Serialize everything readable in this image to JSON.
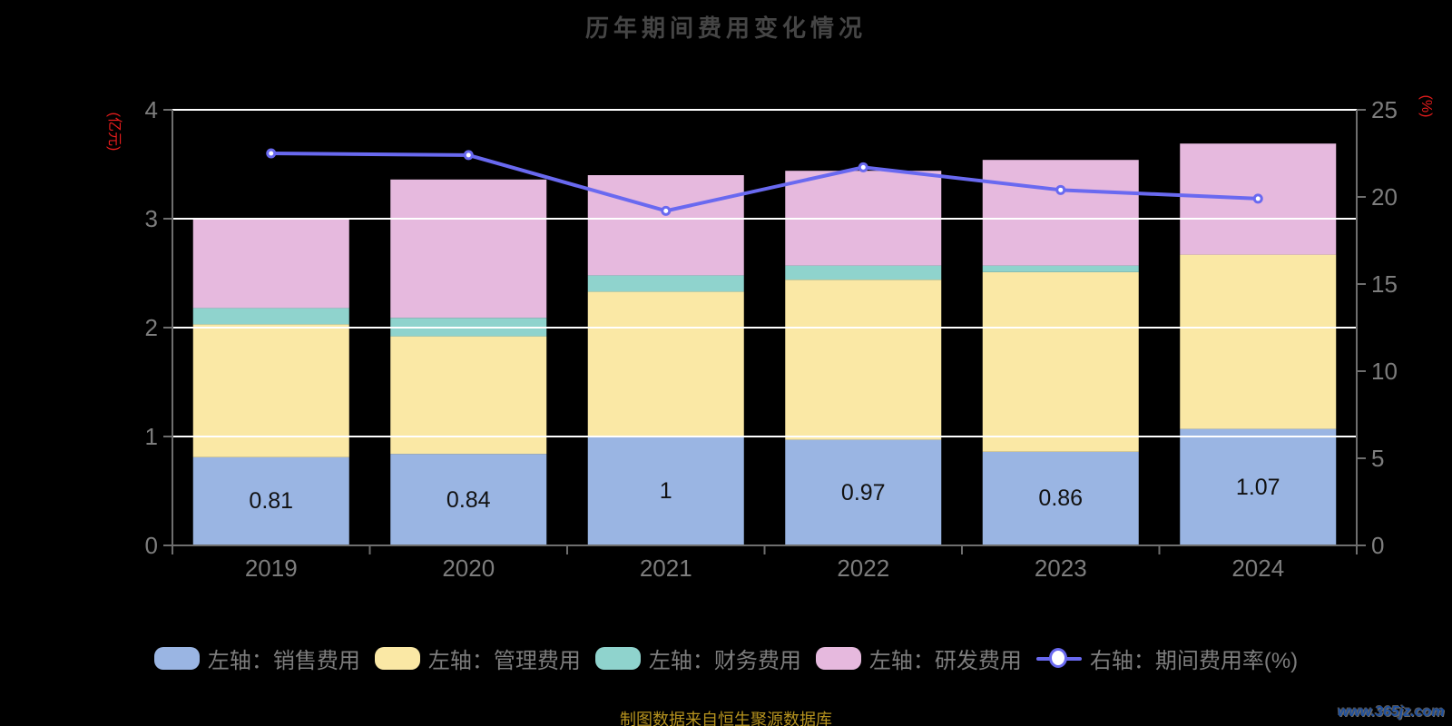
{
  "title": "历年期间费用变化情况",
  "footer": "制图数据来自恒生聚源数据库",
  "watermark": "www.365jz.com",
  "left_axis": {
    "name": "(亿元)",
    "tick_labels": [
      "0",
      "1",
      "2",
      "3",
      "4"
    ],
    "min": 0,
    "max": 4
  },
  "right_axis": {
    "name": "(%)",
    "tick_labels": [
      "0",
      "5",
      "10",
      "15",
      "20",
      "25"
    ],
    "min": 0,
    "max": 25
  },
  "legend": {
    "position": "bottom",
    "items": [
      {
        "key": "sales",
        "label": "左轴：销售费用",
        "type": "swatch",
        "color": "#9ab5e3"
      },
      {
        "key": "admin",
        "label": "左轴：管理费用",
        "type": "swatch",
        "color": "#fae8a5"
      },
      {
        "key": "finance",
        "label": "左轴：财务费用",
        "type": "swatch",
        "color": "#8fd3cd"
      },
      {
        "key": "rnd",
        "label": "左轴：研发费用",
        "type": "swatch",
        "color": "#e6b9de"
      },
      {
        "key": "ratio",
        "label": "右轴：期间费用率(%)",
        "type": "line",
        "color": "#6969f0"
      }
    ]
  },
  "chart_data": {
    "type": "bar",
    "subtype": "stacked bars with overlay line (dual axis)",
    "title": "历年期间费用变化情况",
    "categories": [
      "2019",
      "2020",
      "2021",
      "2022",
      "2023",
      "2024"
    ],
    "series": [
      {
        "key": "sales",
        "name": "销售费用",
        "axis": "left",
        "type": "bar",
        "color": "#9ab5e3",
        "values": [
          0.81,
          0.84,
          1.0,
          0.97,
          0.86,
          1.07
        ]
      },
      {
        "key": "admin",
        "name": "管理费用",
        "axis": "left",
        "type": "bar",
        "color": "#fae8a5",
        "values": [
          1.22,
          1.08,
          1.33,
          1.47,
          1.65,
          1.6
        ]
      },
      {
        "key": "finance",
        "name": "财务费用",
        "axis": "left",
        "type": "bar",
        "color": "#8fd3cd",
        "values": [
          0.15,
          0.17,
          0.15,
          0.13,
          0.06,
          0.0
        ]
      },
      {
        "key": "rnd",
        "name": "研发费用",
        "axis": "left",
        "type": "bar",
        "color": "#e6b9de",
        "values": [
          0.82,
          1.27,
          0.92,
          0.87,
          0.97,
          1.02
        ]
      },
      {
        "key": "ratio",
        "name": "期间费用率(%)",
        "axis": "right",
        "type": "line",
        "color": "#6969f0",
        "values": [
          22.5,
          22.4,
          19.2,
          21.7,
          20.4,
          19.9
        ]
      }
    ],
    "bar_labels": [
      "0.81",
      "0.84",
      "1",
      "0.97",
      "0.86",
      "1.07"
    ],
    "xlabel": "",
    "ylabel_left": "(亿元)",
    "ylabel_right": "(%)",
    "ylim_left": [
      0,
      4
    ],
    "ylim_right": [
      0,
      25
    ],
    "grid": true,
    "legend_position": "bottom"
  },
  "colors": {
    "background": "#000000",
    "grid": "#ffffff",
    "axis": "#6e6e6e",
    "tick_text": "#7d7d7d",
    "title_text": "#454545",
    "axis_name_text": "#e51c1c",
    "bar_value_text": "#111111",
    "line_marker_fill": "#ffffff",
    "footer_text": "#b5921e",
    "watermark_text": "#1d4f9e"
  }
}
